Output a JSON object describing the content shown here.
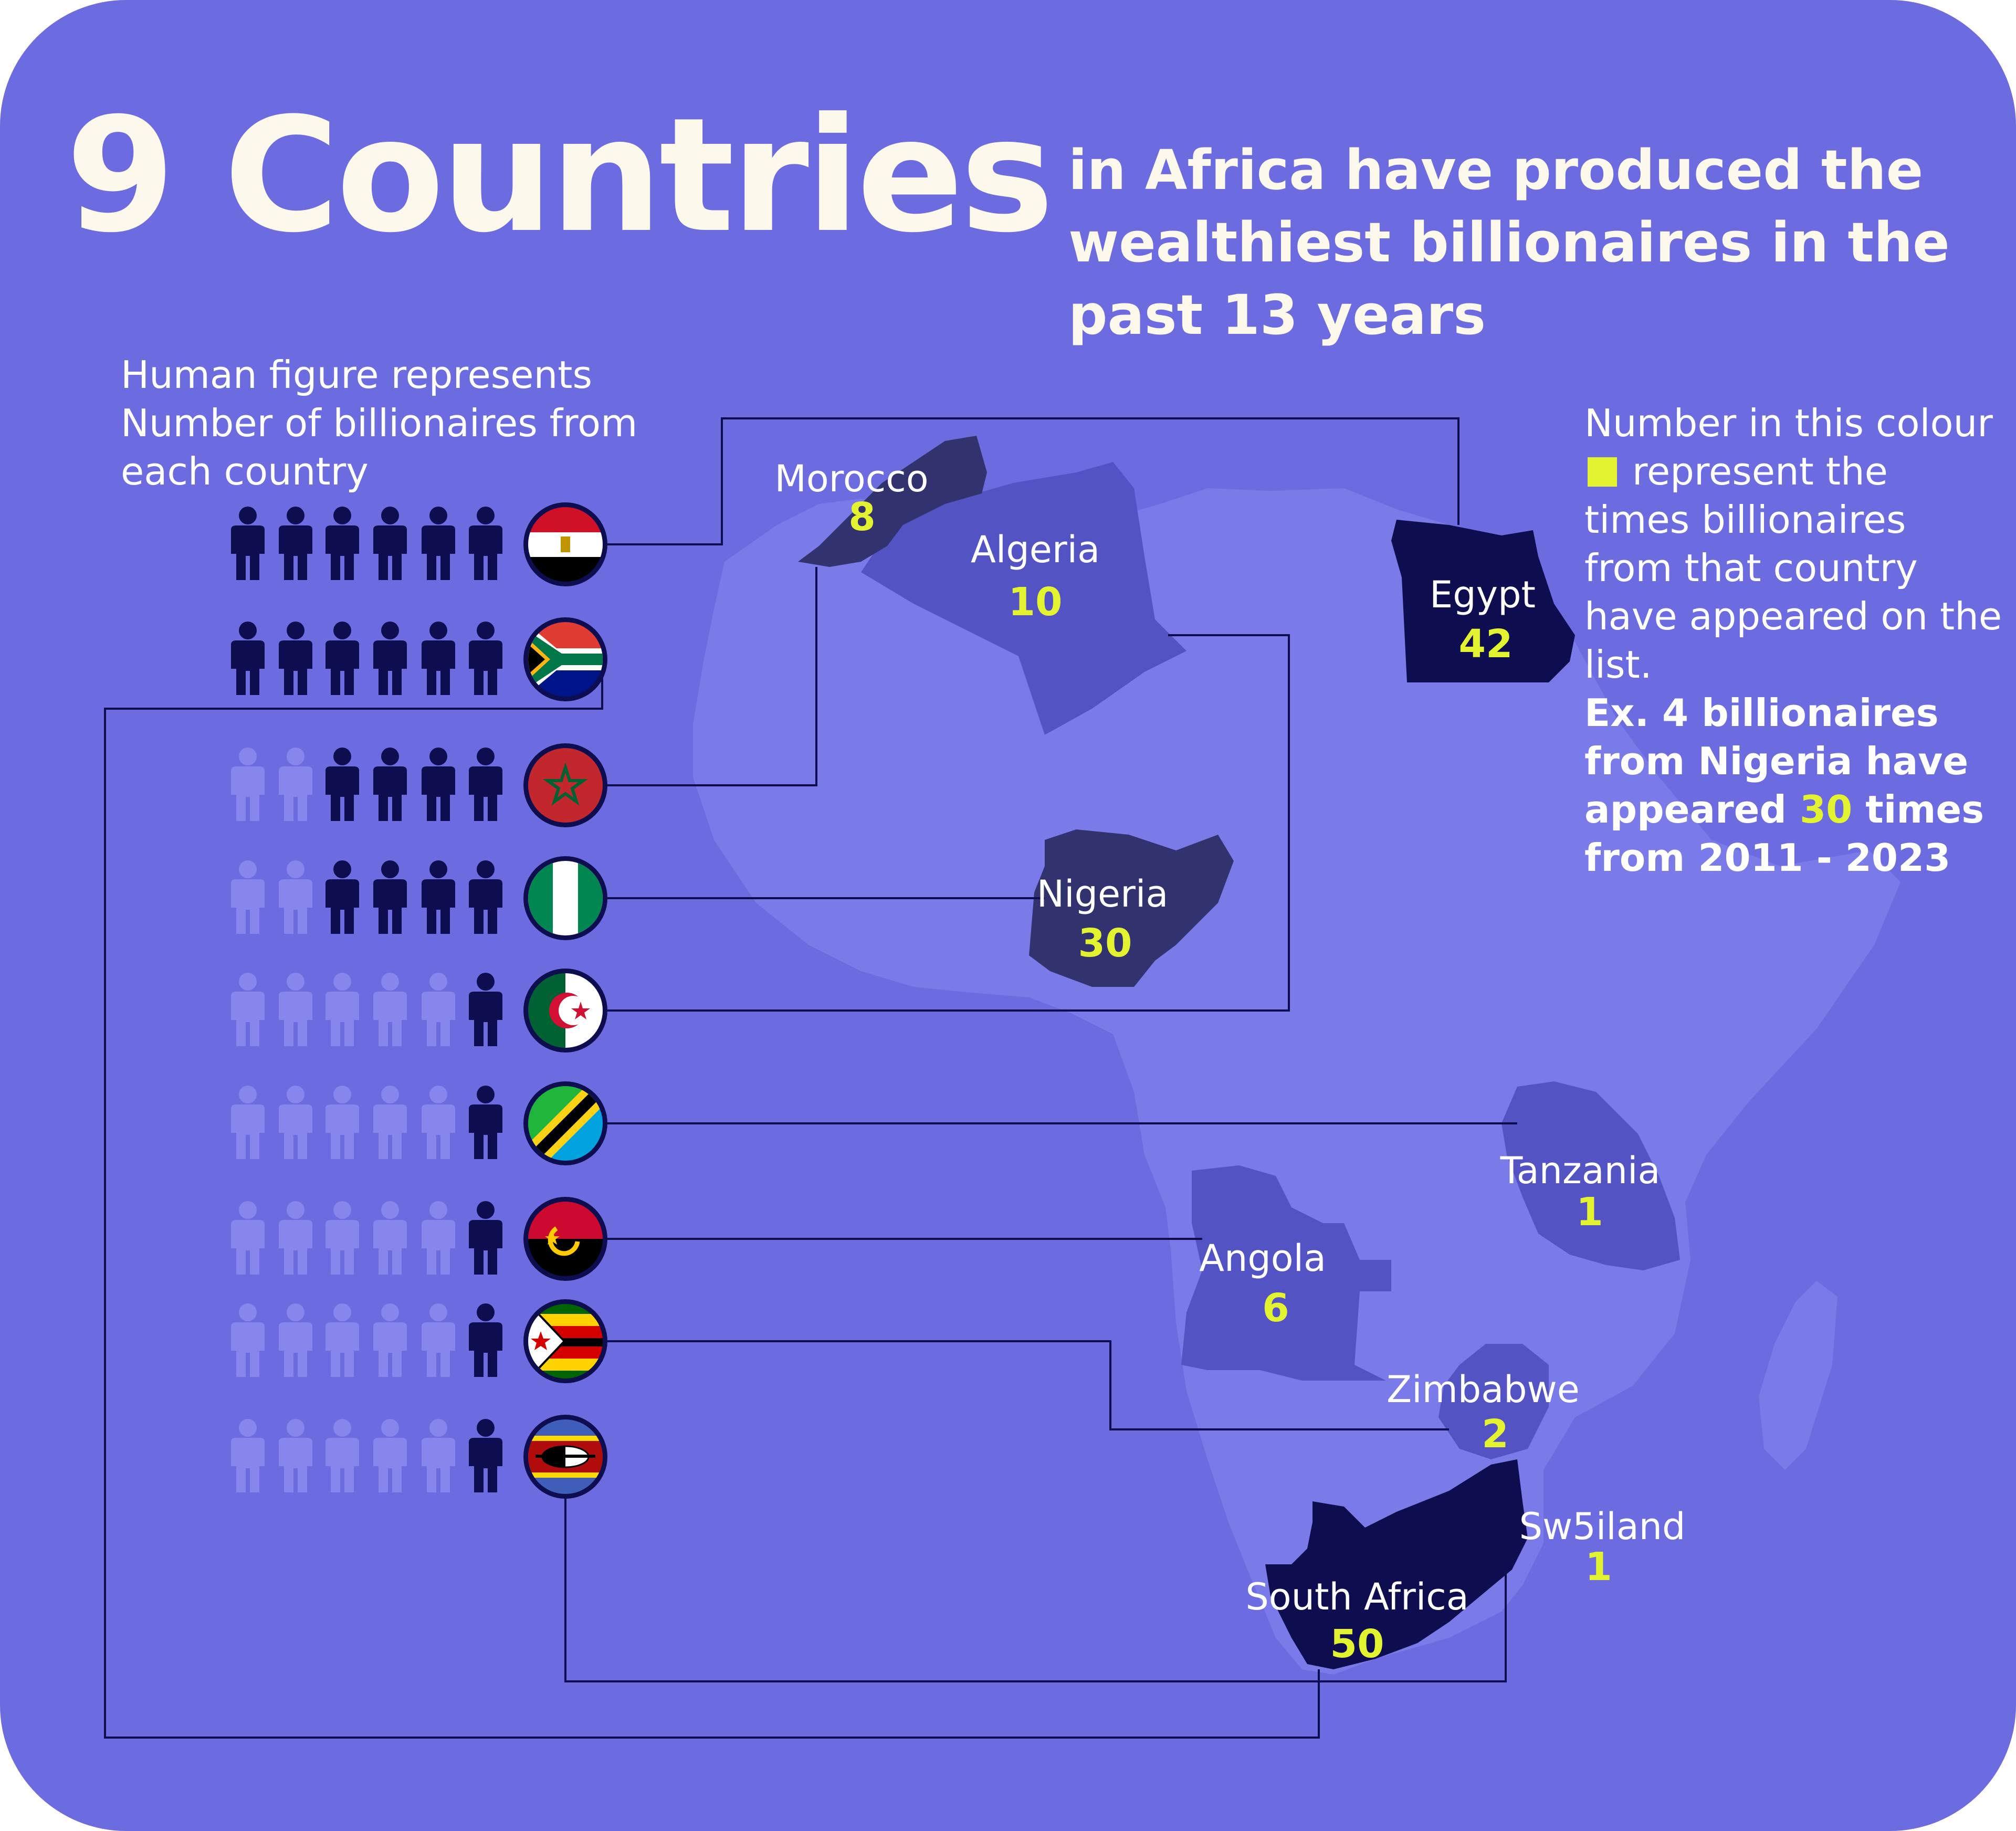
{
  "colors": {
    "background": "#6c6ce0",
    "continent": "#7a7ae8",
    "country_highlight": "#5353c4",
    "country_dark": "#32326f",
    "country_darkest": "#0d0d4f",
    "figure_filled": "#0d0d4f",
    "figure_faded": "#8686ec",
    "accent_yellow": "#e4f32f",
    "headline_text": "#fdf8ec"
  },
  "header": {
    "headline": "9 Countries",
    "subheadline": "in Africa have produced the wealthiest billionaires in the past 13 years"
  },
  "legend_note": "Human figure represents Number of billionaires from each country",
  "explanation": {
    "text_before_swatch": "Number in this colour",
    "text_after_swatch": " represent the times billionaires from that country have appeared on the list.",
    "example_part1": "Ex. 4 billionaires from Nigeria have appeared ",
    "example_highlight": "30",
    "example_part2": " times from 2011 - 2023"
  },
  "countries": [
    {
      "name": "Egypt",
      "flag": "egypt-flag",
      "billionaires": 6,
      "appearances": "42"
    },
    {
      "name": "South Africa",
      "flag": "south-africa-flag",
      "billionaires": 6,
      "appearances": "50"
    },
    {
      "name": "Morocco",
      "flag": "morocco-flag",
      "billionaires": 4,
      "appearances": "8"
    },
    {
      "name": "Nigeria",
      "flag": "nigeria-flag",
      "billionaires": 4,
      "appearances": "30"
    },
    {
      "name": "Algeria",
      "flag": "algeria-flag",
      "billionaires": 1,
      "appearances": "10"
    },
    {
      "name": "Tanzania",
      "flag": "tanzania-flag",
      "billionaires": 1,
      "appearances": "1"
    },
    {
      "name": "Angola",
      "flag": "angola-flag",
      "billionaires": 1,
      "appearances": "6"
    },
    {
      "name": "Zimbabwe",
      "flag": "zimbabwe-flag",
      "billionaires": 1,
      "appearances": "2"
    },
    {
      "name": "Sw5iland",
      "flag": "eswatini-flag",
      "billionaires": 1,
      "appearances": "1"
    }
  ],
  "figures_per_row": 6
}
